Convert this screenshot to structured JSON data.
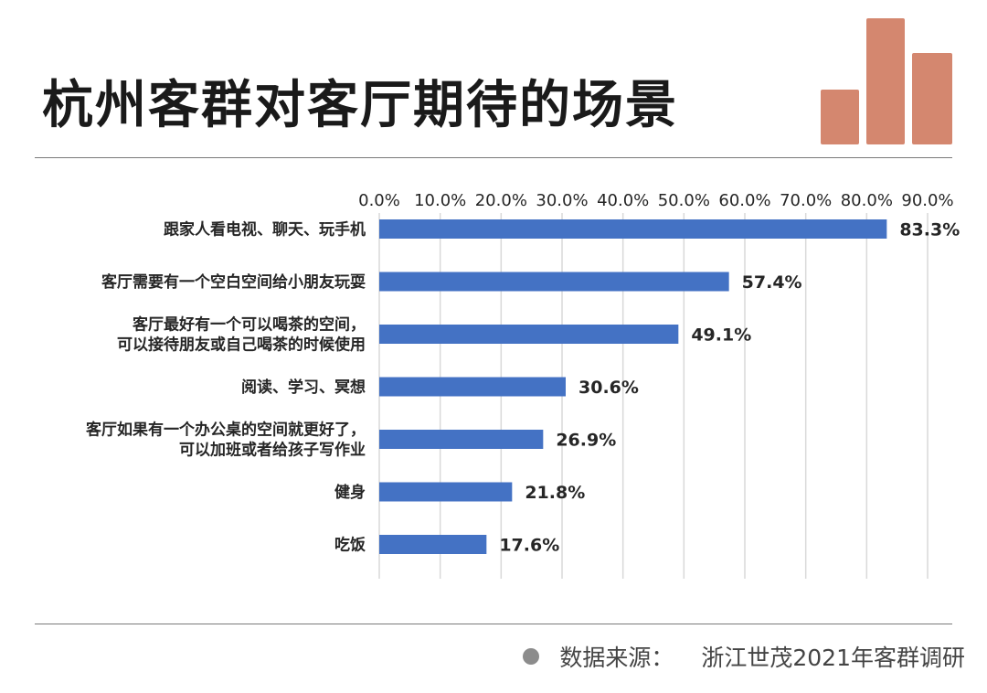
{
  "header": {
    "title": "杭州客群对客厅期待的场景"
  },
  "footer": {
    "source_label": "数据来源：",
    "source_value": "浙江世茂2021年客群调研"
  },
  "colors": {
    "bar": "#4472c4",
    "logo": "#d4876f",
    "grid": "#d9d9d9",
    "text": "#262626"
  },
  "chart_data": {
    "type": "bar",
    "orientation": "horizontal",
    "title": "",
    "xlim": [
      0,
      90
    ],
    "x_ticks": [
      "0.0%",
      "10.0%",
      "20.0%",
      "30.0%",
      "40.0%",
      "50.0%",
      "60.0%",
      "70.0%",
      "80.0%",
      "90.0%"
    ],
    "grid": true,
    "axis_position": "top",
    "categories": [
      [
        "跟家人看电视、聊天、玩手机"
      ],
      [
        "客厅需要有一个空白空间给小朋友玩耍"
      ],
      [
        "客厅最好有一个可以喝茶的空间，",
        "可以接待朋友或自己喝茶的时候使用"
      ],
      [
        "阅读、学习、冥想"
      ],
      [
        "客厅如果有一个办公桌的空间就更好了，",
        "可以加班或者给孩子写作业"
      ],
      [
        "健身"
      ],
      [
        "吃饭"
      ]
    ],
    "values": [
      83.3,
      57.4,
      49.1,
      30.6,
      26.9,
      21.8,
      17.6
    ],
    "data_labels": [
      "83.3%",
      "57.4%",
      "49.1%",
      "30.6%",
      "26.9%",
      "21.8%",
      "17.6%"
    ]
  }
}
